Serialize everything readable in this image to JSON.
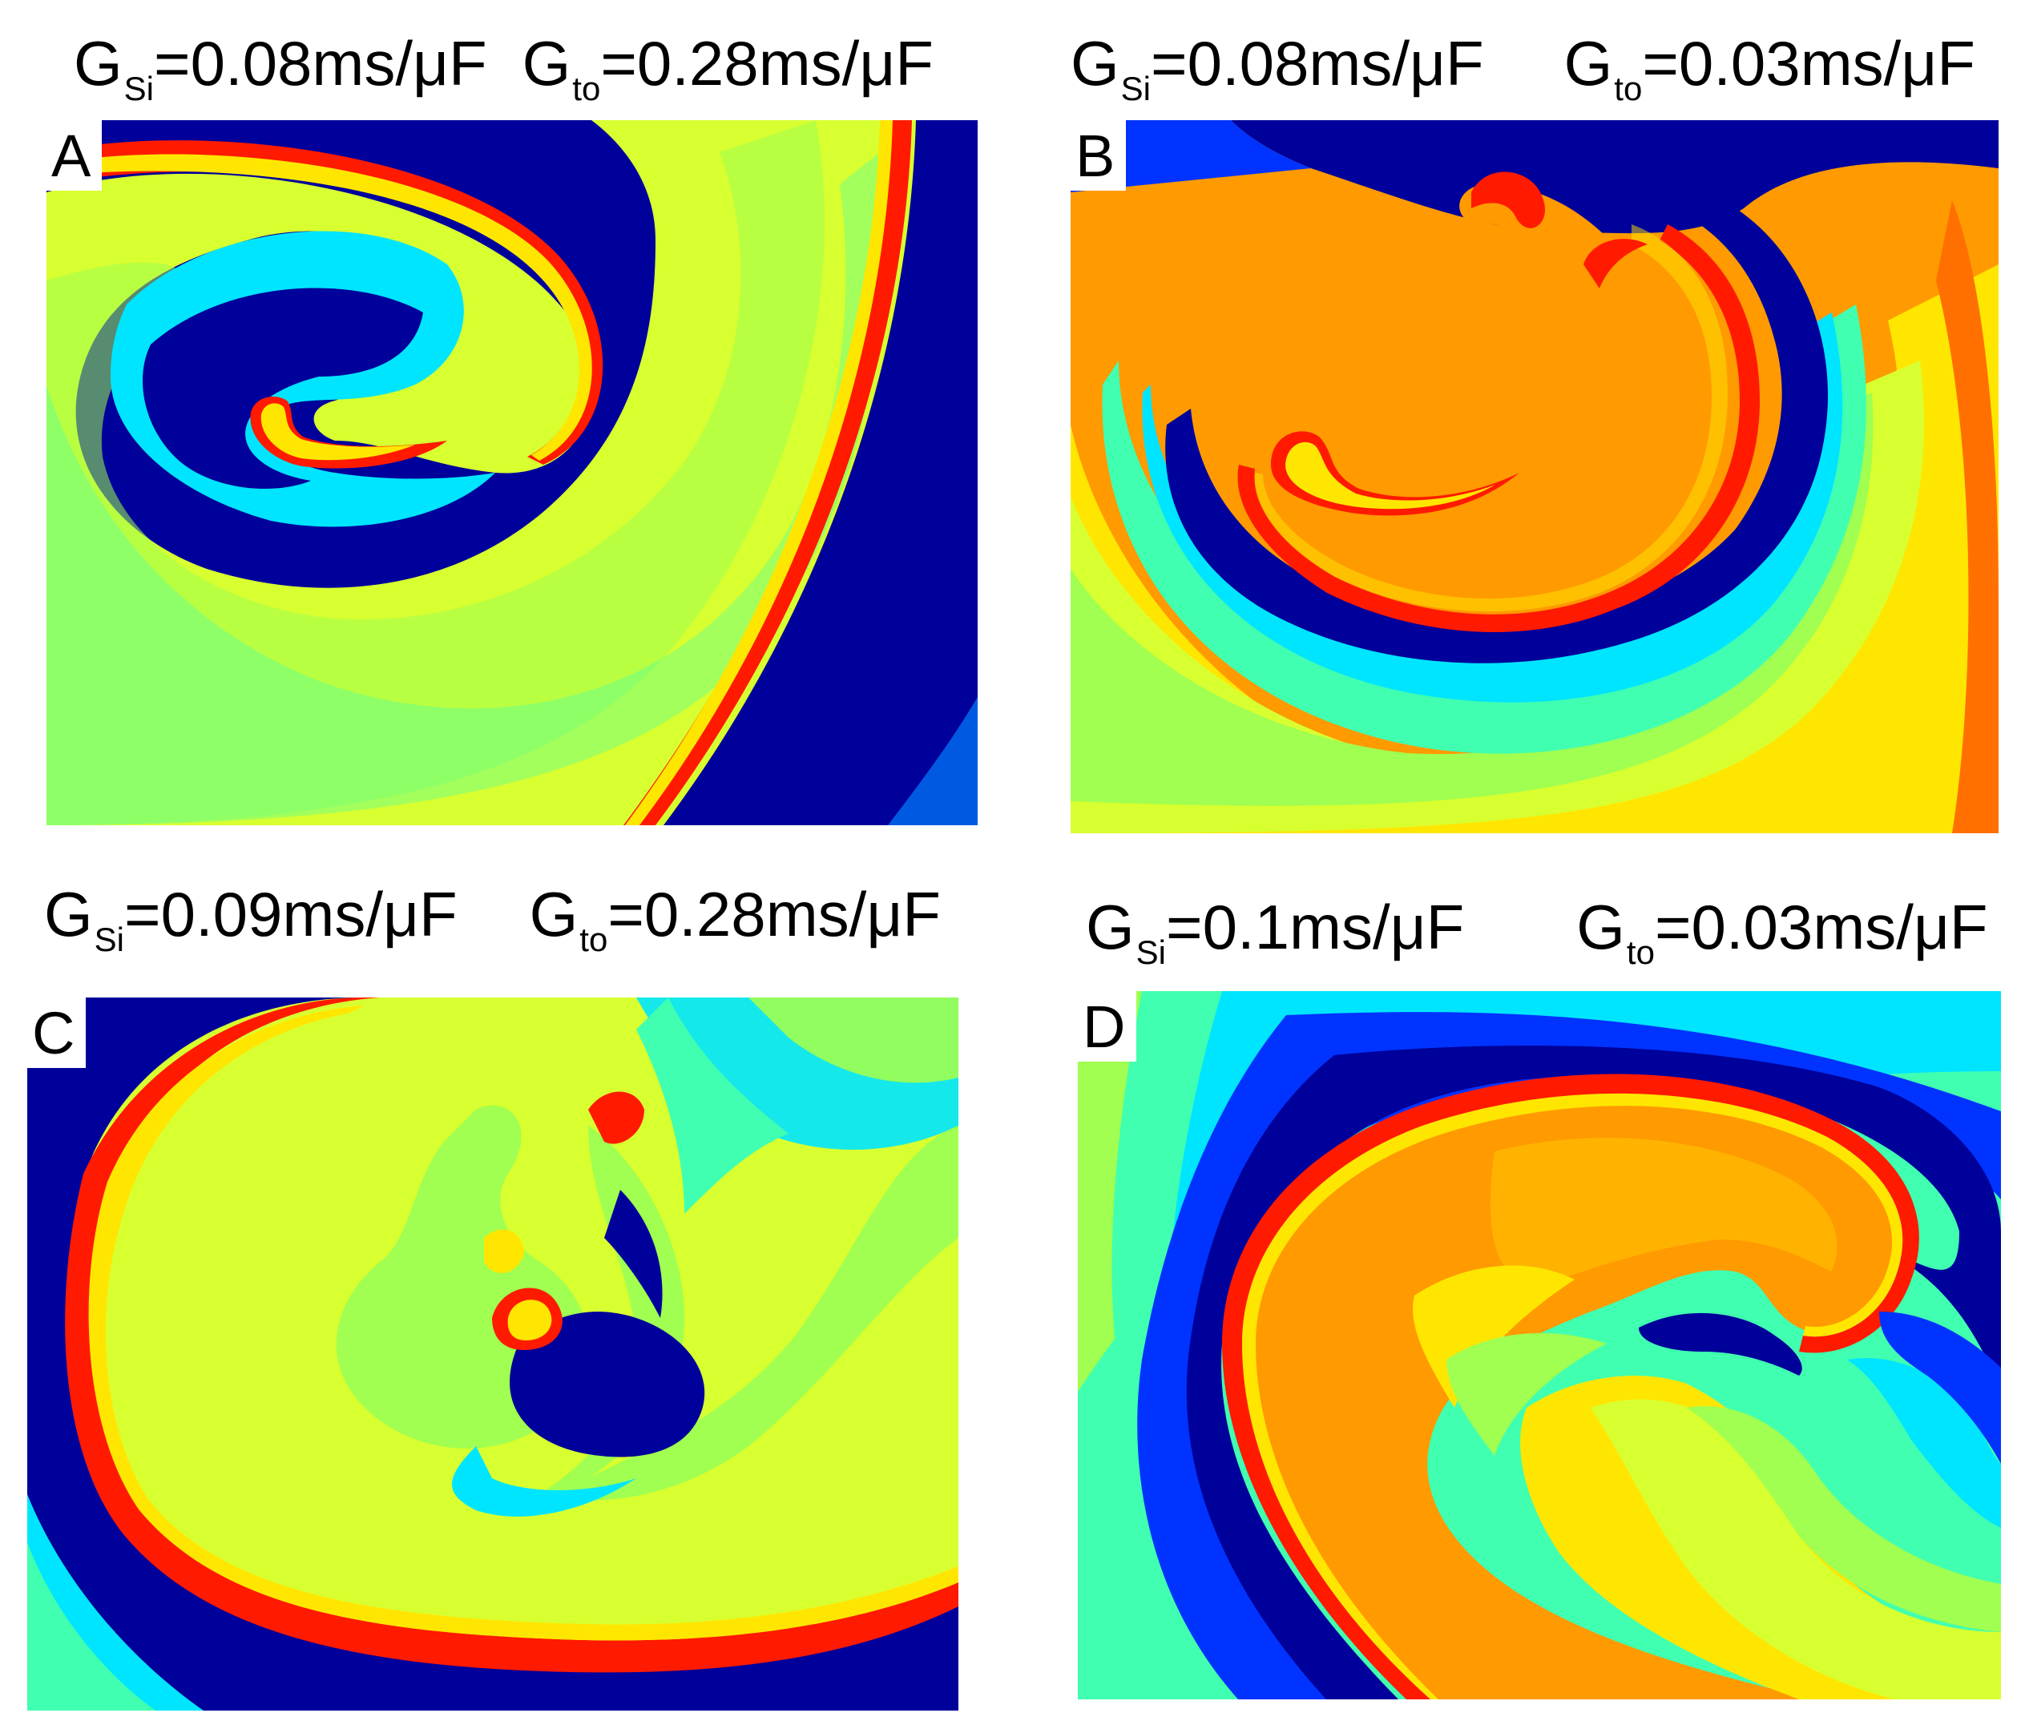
{
  "panels": {
    "a": {
      "letter": "A",
      "p1": {
        "g": "G",
        "sub": "Si",
        "val": "=0.08ms/μF"
      },
      "p2": {
        "g": "G",
        "sub": "to",
        "val": "=0.28ms/μF"
      }
    },
    "b": {
      "letter": "B",
      "p1": {
        "g": "G",
        "sub": "Si",
        "val": "=0.08ms/μF"
      },
      "p2": {
        "g": "G",
        "sub": "to",
        "val": "=0.03ms/μF"
      }
    },
    "c": {
      "letter": "C",
      "p1": {
        "g": "G",
        "sub": "Si",
        "val": "=0.09ms/μF"
      },
      "p2": {
        "g": "G",
        "sub": "to",
        "val": "=0.28ms/μF"
      }
    },
    "d": {
      "letter": "D",
      "p1": {
        "g": "G",
        "sub": "Si",
        "val": "=0.1ms/μF"
      },
      "p2": {
        "g": "G",
        "sub": "to",
        "val": "=0.03ms/μF"
      }
    }
  },
  "colors": {
    "deep_blue": "#00009a",
    "blue": "#0033ff",
    "cyan": "#00e5ff",
    "aqua_green": "#40ffb0",
    "green": "#a0ff50",
    "yellow_green": "#d8ff30",
    "yellow": "#ffe600",
    "orange": "#ff9a00",
    "dark_orange": "#ff7000",
    "red": "#ff1a00"
  }
}
